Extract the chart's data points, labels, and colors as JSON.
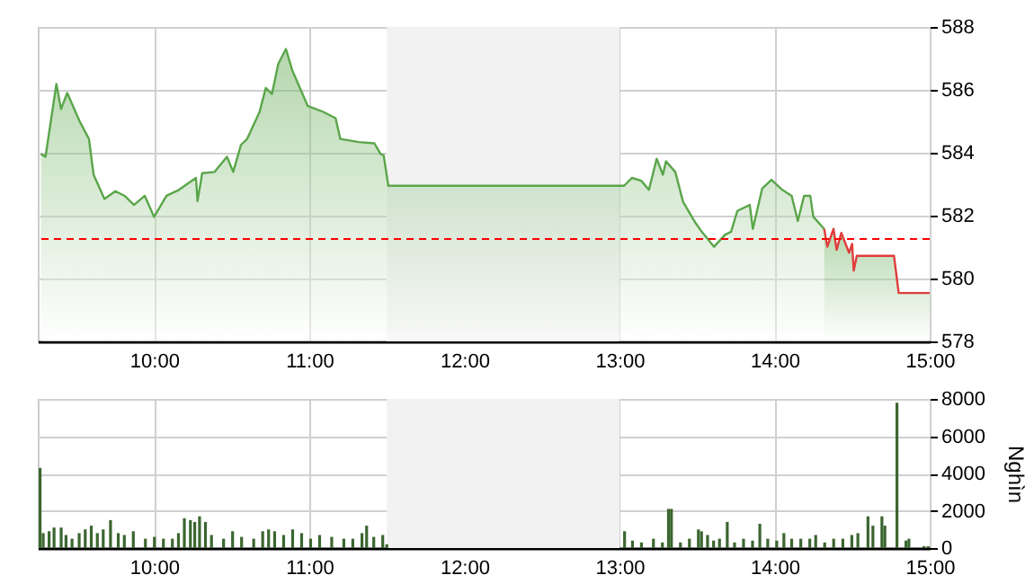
{
  "chart_data": [
    {
      "type": "area",
      "xlim": [
        9.25,
        15
      ],
      "xticks": [
        {
          "value": 10,
          "label": "10:00"
        },
        {
          "value": 11,
          "label": "11:00"
        },
        {
          "value": 12,
          "label": "12:00"
        },
        {
          "value": 13,
          "label": "13:00"
        },
        {
          "value": 14,
          "label": "14:00"
        },
        {
          "value": 15,
          "label": "15:00"
        }
      ],
      "ylim": [
        578,
        588
      ],
      "yticks": [
        578,
        580,
        582,
        584,
        586,
        588
      ],
      "grid": true,
      "bands": [
        {
          "axis": "x",
          "from": 11.5,
          "to": 13,
          "color": "#f2f2f2"
        }
      ],
      "ref_lines": [
        {
          "axis": "y",
          "value": 581.26,
          "color": "#ff0000",
          "line_style": "dashed"
        }
      ],
      "series": [
        {
          "color": "#5aa64a",
          "x": [
            9.27,
            9.3,
            9.37,
            9.4,
            9.44,
            9.52,
            9.58,
            9.61,
            9.68,
            9.75,
            9.81,
            9.87,
            9.94,
            10,
            10.08,
            10.16,
            10.27,
            10.28,
            10.31,
            10.39,
            10.47,
            10.51,
            10.56,
            10.6,
            10.68,
            10.72,
            10.76,
            10.8,
            10.85,
            10.89,
            10.99,
            11.09,
            11.17,
            11.2,
            11.32,
            11.42,
            11.46,
            11.48,
            11.51,
            13.03,
            13.08,
            13.14,
            13.19,
            13.24,
            13.28,
            13.3,
            13.36,
            13.41,
            13.49,
            13.53,
            13.61,
            13.68,
            13.72,
            13.76,
            13.84,
            13.86,
            13.92,
            13.98,
            14.05,
            14.11,
            14.15,
            14.19,
            14.23,
            14.25,
            14.32
          ],
          "values": [
            583.96,
            583.87,
            586.19,
            585.39,
            585.9,
            585.0,
            584.44,
            583.3,
            582.53,
            582.78,
            582.63,
            582.34,
            582.63,
            581.96,
            582.63,
            582.82,
            583.2,
            582.46,
            583.35,
            583.39,
            583.87,
            583.39,
            584.25,
            584.44,
            585.3,
            586.06,
            585.87,
            586.82,
            587.3,
            586.63,
            585.49,
            585.3,
            585.1,
            584.44,
            584.34,
            584.3,
            583.96,
            583.92,
            582.95,
            582.95,
            583.2,
            583.11,
            582.82,
            583.81,
            583.3,
            583.73,
            583.39,
            582.44,
            581.77,
            581.49,
            581.01,
            581.39,
            581.49,
            582.15,
            582.34,
            581.58,
            582.86,
            583.14,
            582.82,
            582.63,
            581.83,
            582.63,
            582.63,
            581.96,
            581.58
          ]
        },
        {
          "color": "#e03c3c",
          "x": [
            14.32,
            14.34,
            14.38,
            14.4,
            14.43,
            14.48,
            14.5,
            14.51,
            14.53,
            14.77,
            14.8,
            15
          ],
          "values": [
            581.58,
            581.01,
            581.58,
            580.91,
            581.45,
            580.82,
            581.1,
            580.25,
            580.72,
            580.72,
            579.54,
            579.54
          ]
        }
      ]
    },
    {
      "type": "bar",
      "color": "#3b6630",
      "ylabel": "Nghìn",
      "xlim": [
        9.25,
        15
      ],
      "xticks": [
        {
          "value": 10,
          "label": "10:00"
        },
        {
          "value": 11,
          "label": "11:00"
        },
        {
          "value": 12,
          "label": "12:00"
        },
        {
          "value": 13,
          "label": "13:00"
        },
        {
          "value": 14,
          "label": "14:00"
        },
        {
          "value": 15,
          "label": "15:00"
        }
      ],
      "ylim": [
        0,
        8000
      ],
      "yticks": [
        0,
        2000,
        4000,
        6000,
        8000
      ],
      "grid": true,
      "bands": [
        {
          "axis": "x",
          "from": 11.5,
          "to": 13,
          "color": "#f2f2f2"
        }
      ],
      "x": [
        9.265,
        9.285,
        9.323,
        9.355,
        9.401,
        9.432,
        9.471,
        9.517,
        9.556,
        9.595,
        9.634,
        9.672,
        9.719,
        9.769,
        9.808,
        9.866,
        9.944,
        10.002,
        10.06,
        10.118,
        10.157,
        10.195,
        10.234,
        10.262,
        10.293,
        10.331,
        10.37,
        10.448,
        10.506,
        10.564,
        10.642,
        10.7,
        10.738,
        10.777,
        10.835,
        10.893,
        10.951,
        11.009,
        11.067,
        11.145,
        11.223,
        11.281,
        11.34,
        11.37,
        11.416,
        11.474,
        11.5,
        13.033,
        13.084,
        13.142,
        13.219,
        13.277,
        13.316,
        13.335,
        13.393,
        13.451,
        13.509,
        13.529,
        13.568,
        13.607,
        13.645,
        13.695,
        13.742,
        13.8,
        13.858,
        13.905,
        13.956,
        14.014,
        14.06,
        14.11,
        14.169,
        14.227,
        14.265,
        14.323,
        14.381,
        14.44,
        14.498,
        14.537,
        14.602,
        14.634,
        14.692,
        14.711,
        14.789,
        14.847,
        14.866,
        14.963,
        14.99
      ],
      "values": [
        4300,
        800,
        900,
        1100,
        1100,
        700,
        500,
        800,
        1000,
        1200,
        800,
        1000,
        1500,
        800,
        700,
        900,
        500,
        600,
        500,
        500,
        800,
        1600,
        1500,
        1400,
        1700,
        1400,
        700,
        500,
        900,
        600,
        500,
        900,
        1000,
        900,
        700,
        1000,
        800,
        500,
        700,
        600,
        500,
        500,
        800,
        1200,
        600,
        700,
        200,
        900,
        400,
        300,
        500,
        300,
        2100,
        2100,
        300,
        500,
        1000,
        900,
        700,
        400,
        500,
        1400,
        300,
        500,
        400,
        1300,
        500,
        400,
        800,
        500,
        500,
        500,
        700,
        300,
        500,
        500,
        700,
        800,
        1700,
        1200,
        1700,
        1200,
        7800,
        400,
        500,
        100,
        100
      ]
    }
  ]
}
